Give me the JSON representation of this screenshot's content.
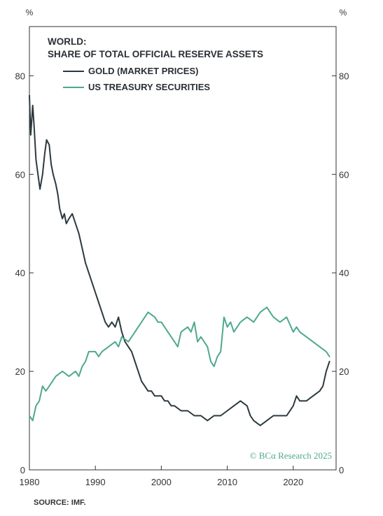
{
  "chart_data": {
    "type": "line",
    "title": "WORLD:",
    "subtitle": "SHARE OF TOTAL OFFICIAL RESERVE ASSETS",
    "left_unit": "%",
    "right_unit": "%",
    "xlim": [
      1980,
      2026.5
    ],
    "ylim": [
      0,
      90
    ],
    "x_ticks": [
      "1980",
      "1990",
      "2000",
      "2010",
      "2020"
    ],
    "y_ticks_left": [
      "0",
      "20",
      "40",
      "60",
      "80"
    ],
    "y_ticks_right": [
      "0",
      "20",
      "40",
      "60",
      "80"
    ],
    "credit": "© BCα Research 2025",
    "source": "SOURCE: IMF.",
    "legend_position": "top-left",
    "series": [
      {
        "name": "GOLD (MARKET PRICES)",
        "color": "#2b3a3f",
        "x": [
          1980.0,
          1980.2,
          1980.5,
          1980.7,
          1981.0,
          1981.3,
          1981.6,
          1982.0,
          1982.3,
          1982.6,
          1983.0,
          1983.3,
          1983.6,
          1984.0,
          1984.3,
          1984.6,
          1985.0,
          1985.3,
          1985.6,
          1986.0,
          1986.5,
          1987.0,
          1987.5,
          1988.0,
          1988.5,
          1989.0,
          1989.5,
          1990.0,
          1990.5,
          1991.0,
          1991.5,
          1992.0,
          1992.5,
          1993.0,
          1993.5,
          1994.0,
          1994.5,
          1995.0,
          1995.5,
          1996.0,
          1996.5,
          1997.0,
          1997.5,
          1998.0,
          1998.5,
          1999.0,
          1999.5,
          2000.0,
          2000.5,
          2001.0,
          2001.5,
          2002.0,
          2003.0,
          2004.0,
          2005.0,
          2006.0,
          2007.0,
          2008.0,
          2009.0,
          2010.0,
          2011.0,
          2012.0,
          2013.0,
          2013.5,
          2014.0,
          2015.0,
          2016.0,
          2017.0,
          2018.0,
          2019.0,
          2020.0,
          2020.5,
          2021.0,
          2022.0,
          2023.0,
          2024.0,
          2024.5,
          2025.0,
          2025.5
        ],
        "y": [
          76,
          68,
          74,
          70,
          63,
          60,
          57,
          60,
          64,
          67,
          66,
          62,
          60,
          58,
          56,
          53,
          51,
          52,
          50,
          51,
          52,
          50,
          48,
          45,
          42,
          40,
          38,
          36,
          34,
          32,
          30,
          29,
          30,
          29,
          31,
          28,
          26,
          25,
          24,
          22,
          20,
          18,
          17,
          16,
          16,
          15,
          15,
          15,
          14,
          14,
          13,
          13,
          12,
          12,
          11,
          11,
          10,
          11,
          11,
          12,
          13,
          14,
          13,
          11,
          10,
          9,
          10,
          11,
          11,
          11,
          13,
          15,
          14,
          14,
          15,
          16,
          17,
          20,
          22
        ]
      },
      {
        "name": "US TREASURY SECURITIES",
        "color": "#4fa88f",
        "x": [
          1980.0,
          1980.5,
          1981.0,
          1981.5,
          1982.0,
          1982.5,
          1983.0,
          1984.0,
          1985.0,
          1986.0,
          1987.0,
          1987.5,
          1988.0,
          1988.5,
          1989.0,
          1990.0,
          1990.5,
          1991.0,
          1992.0,
          1993.0,
          1993.5,
          1994.0,
          1995.0,
          1995.5,
          1996.0,
          1996.5,
          1997.0,
          1997.5,
          1998.0,
          1999.0,
          1999.5,
          2000.0,
          2001.0,
          2002.0,
          2002.5,
          2003.0,
          2004.0,
          2004.5,
          2005.0,
          2005.5,
          2006.0,
          2006.5,
          2007.0,
          2007.5,
          2008.0,
          2008.5,
          2009.0,
          2009.5,
          2010.0,
          2010.5,
          2011.0,
          2012.0,
          2013.0,
          2014.0,
          2015.0,
          2016.0,
          2016.5,
          2017.0,
          2018.0,
          2019.0,
          2020.0,
          2020.5,
          2021.0,
          2022.0,
          2023.0,
          2024.0,
          2025.0,
          2025.5
        ],
        "y": [
          11,
          10,
          13,
          14,
          17,
          16,
          17,
          19,
          20,
          19,
          20,
          19,
          21,
          22,
          24,
          24,
          23,
          24,
          25,
          26,
          25,
          27,
          26,
          27,
          28,
          29,
          30,
          31,
          32,
          31,
          30,
          30,
          28,
          26,
          25,
          28,
          29,
          28,
          30,
          26,
          27,
          26,
          25,
          22,
          21,
          23,
          24,
          31,
          29,
          30,
          28,
          30,
          31,
          30,
          32,
          33,
          32,
          31,
          30,
          31,
          28,
          29,
          28,
          27,
          26,
          25,
          24,
          23
        ]
      }
    ]
  }
}
